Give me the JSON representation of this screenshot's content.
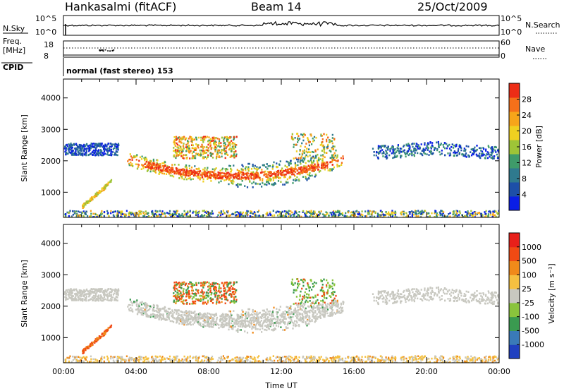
{
  "header": {
    "station": "Hankasalmi (fitACF)",
    "beam": "Beam 14",
    "date": "25/Oct/2009"
  },
  "nsky_panel": {
    "left_label": "N.Sky",
    "right_label": "N.Search",
    "left_ticks": [
      "10^5",
      "10^0"
    ],
    "right_ticks": [
      "10^5",
      "10^0"
    ]
  },
  "freq_panel": {
    "left_label_1": "Freq.",
    "left_label_2": "[MHz]",
    "right_label": "Nave",
    "left_ticks": [
      "18",
      "8"
    ],
    "right_ticks": [
      "60",
      "0"
    ]
  },
  "cpid_panel": {
    "label": "CPID",
    "mode": "normal (fast stereo) 153"
  },
  "chart_data": [
    {
      "type": "heatmap",
      "quantity": "Power",
      "ylabel": "Slant Range [km]",
      "xlabel": "Time UT",
      "ylim": [
        200,
        4600
      ],
      "xlim_hours": [
        0,
        24
      ],
      "yticks": [
        1000,
        2000,
        3000,
        4000
      ],
      "colorbar": {
        "label": "Power [dB]",
        "ticks": [
          4,
          8,
          12,
          16,
          20,
          24,
          28
        ],
        "range": [
          0,
          32
        ],
        "colors": [
          "#0a1ee6",
          "#1d4fa8",
          "#2f7a8e",
          "#3f9b6a",
          "#9ec437",
          "#f0d020",
          "#f7a51a",
          "#f5701a",
          "#ed2d16"
        ]
      },
      "echo_regions": [
        {
          "region": "near-range band",
          "t": [
            0.0,
            24.0
          ],
          "r": [
            220,
            420
          ],
          "level": 0.35
        },
        {
          "region": "far-range band 00-03 UT",
          "t": [
            0.0,
            3.0
          ],
          "r": [
            2200,
            2550
          ],
          "level": 0.15
        },
        {
          "region": "far-range band 18-24 UT",
          "t": [
            17.0,
            24.0
          ],
          "r": [
            2150,
            2550
          ],
          "level": 0.18
        },
        {
          "region": "arc 03.5-15 UT",
          "t": [
            3.5,
            15.5
          ],
          "r": [
            1100,
            2100
          ],
          "level": 0.65
        },
        {
          "region": "upper patch 06-09 UT",
          "t": [
            6.0,
            9.5
          ],
          "r": [
            2100,
            2800
          ],
          "level": 0.55
        },
        {
          "region": "upper patch 13-15 UT",
          "t": [
            12.5,
            15.0
          ],
          "r": [
            2100,
            2900
          ],
          "level": 0.45
        }
      ]
    },
    {
      "type": "heatmap",
      "quantity": "Velocity",
      "ylabel": "Slant Range [km]",
      "xlabel": "Time UT",
      "ylim": [
        200,
        4600
      ],
      "xlim_hours": [
        0,
        24
      ],
      "yticks": [
        1000,
        2000,
        3000,
        4000
      ],
      "xtick_labels": [
        "00:00",
        "04:00",
        "08:00",
        "12:00",
        "16:00",
        "20:00",
        "00:00"
      ],
      "colorbar": {
        "label": "Velocity [m s⁻¹]",
        "ticks": [
          "1000",
          "500",
          "100",
          "25",
          "-25",
          "-100",
          "-500",
          "-1000"
        ],
        "colors": [
          "#2040c0",
          "#3a7ab8",
          "#3a9a50",
          "#8ac43c",
          "#c8c8c0",
          "#f5c040",
          "#f08a1a",
          "#f04a14",
          "#e8201a"
        ]
      }
    }
  ]
}
